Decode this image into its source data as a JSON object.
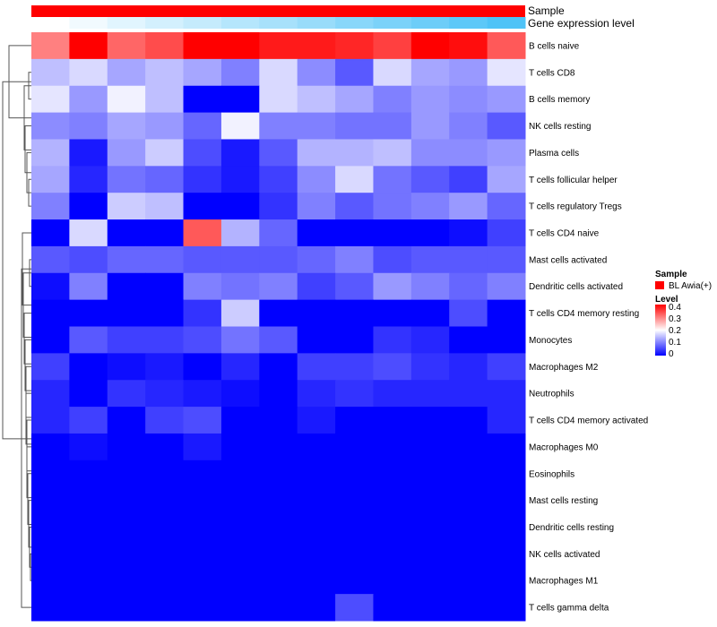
{
  "chart_data": {
    "type": "heatmap",
    "title": "",
    "annotation_rows": [
      {
        "name": "Sample",
        "label": "Sample",
        "color": "#FF0000"
      },
      {
        "name": "Gene expression level",
        "label": "Gene expression level",
        "color_low": "#FFFFFF",
        "color_high": "#4FC3F7",
        "values": [
          0.0,
          0.08,
          0.17,
          0.25,
          0.33,
          0.42,
          0.5,
          0.58,
          0.67,
          0.75,
          0.83,
          0.92,
          1.0
        ]
      }
    ],
    "rows": [
      "B cells naive",
      "T cells CD8",
      "B cells memory",
      "NK cells resting",
      "Plasma cells",
      "T cells follicular helper",
      "T cells regulatory  Tregs",
      "T cells CD4 naive",
      "Mast cells activated",
      "Dendritic cells activated",
      "T cells CD4 memory resting",
      "Monocytes",
      "Macrophages M2",
      "Neutrophils",
      "T cells CD4 memory activated",
      "Macrophages M0",
      "Eosinophils",
      "Mast cells resting",
      "Dendritic cells resting",
      "NK cells activated",
      "Macrophages M1",
      "T cells gamma delta"
    ],
    "n_columns": 13,
    "values": [
      [
        0.3,
        0.4,
        0.32,
        0.34,
        0.4,
        0.4,
        0.38,
        0.38,
        0.37,
        0.35,
        0.4,
        0.39,
        0.33
      ],
      [
        0.15,
        0.17,
        0.13,
        0.15,
        0.13,
        0.1,
        0.17,
        0.11,
        0.07,
        0.17,
        0.13,
        0.12,
        0.18
      ],
      [
        0.18,
        0.12,
        0.19,
        0.15,
        0.0,
        0.0,
        0.17,
        0.15,
        0.13,
        0.1,
        0.12,
        0.11,
        0.12
      ],
      [
        0.11,
        0.1,
        0.13,
        0.12,
        0.08,
        0.19,
        0.1,
        0.1,
        0.09,
        0.09,
        0.12,
        0.1,
        0.07
      ],
      [
        0.14,
        0.02,
        0.12,
        0.16,
        0.06,
        0.02,
        0.07,
        0.14,
        0.14,
        0.15,
        0.11,
        0.11,
        0.12
      ],
      [
        0.13,
        0.03,
        0.09,
        0.08,
        0.04,
        0.02,
        0.05,
        0.11,
        0.17,
        0.09,
        0.07,
        0.05,
        0.13
      ],
      [
        0.1,
        0.0,
        0.16,
        0.15,
        0.0,
        0.0,
        0.04,
        0.1,
        0.07,
        0.09,
        0.1,
        0.12,
        0.08
      ],
      [
        0.0,
        0.17,
        0.0,
        0.0,
        0.33,
        0.14,
        0.08,
        0.0,
        0.0,
        0.0,
        0.0,
        0.01,
        0.05
      ],
      [
        0.07,
        0.06,
        0.08,
        0.08,
        0.07,
        0.07,
        0.07,
        0.08,
        0.1,
        0.06,
        0.07,
        0.07,
        0.07
      ],
      [
        0.01,
        0.1,
        0.0,
        0.0,
        0.1,
        0.09,
        0.1,
        0.05,
        0.07,
        0.12,
        0.1,
        0.08,
        0.1
      ],
      [
        0.0,
        0.0,
        0.0,
        0.0,
        0.04,
        0.16,
        0.0,
        0.0,
        0.0,
        0.0,
        0.0,
        0.06,
        0.0
      ],
      [
        0.0,
        0.07,
        0.05,
        0.05,
        0.06,
        0.09,
        0.07,
        0.0,
        0.0,
        0.04,
        0.03,
        0.0,
        0.0
      ],
      [
        0.05,
        0.0,
        0.01,
        0.02,
        0.0,
        0.03,
        0.0,
        0.05,
        0.05,
        0.06,
        0.04,
        0.03,
        0.05
      ],
      [
        0.03,
        0.0,
        0.04,
        0.03,
        0.02,
        0.01,
        0.0,
        0.03,
        0.04,
        0.03,
        0.03,
        0.03,
        0.03
      ],
      [
        0.03,
        0.05,
        0.0,
        0.05,
        0.06,
        0.0,
        0.0,
        0.02,
        0.0,
        0.0,
        0.0,
        0.0,
        0.03
      ],
      [
        0.0,
        0.01,
        0.0,
        0.0,
        0.02,
        0.0,
        0.0,
        0.0,
        0.0,
        0.0,
        0.0,
        0.0,
        0.0
      ],
      [
        0.0,
        0.0,
        0.0,
        0.0,
        0.0,
        0.0,
        0.0,
        0.0,
        0.0,
        0.0,
        0.0,
        0.0,
        0.0
      ],
      [
        0.0,
        0.0,
        0.0,
        0.0,
        0.0,
        0.0,
        0.0,
        0.0,
        0.0,
        0.0,
        0.0,
        0.0,
        0.0
      ],
      [
        0.0,
        0.0,
        0.0,
        0.0,
        0.0,
        0.0,
        0.0,
        0.0,
        0.0,
        0.0,
        0.0,
        0.0,
        0.0
      ],
      [
        0.0,
        0.0,
        0.0,
        0.0,
        0.0,
        0.0,
        0.0,
        0.0,
        0.0,
        0.0,
        0.0,
        0.0,
        0.0
      ],
      [
        0.0,
        0.0,
        0.0,
        0.0,
        0.0,
        0.0,
        0.0,
        0.0,
        0.0,
        0.0,
        0.0,
        0.0,
        0.0
      ],
      [
        0.0,
        0.0,
        0.0,
        0.0,
        0.0,
        0.0,
        0.0,
        0.0,
        0.06,
        0.0,
        0.0,
        0.0,
        0.0
      ]
    ],
    "color_scale": {
      "low": "#0000FF",
      "mid": "#FFFFFF",
      "high": "#FF0000",
      "min": 0,
      "mid_value": 0.2,
      "max": 0.4
    },
    "dendrogram": "rows clustered (left)",
    "legend": {
      "sample_title": "Sample",
      "sample_entry": "BL Awia(+)",
      "sample_color": "#FF0000",
      "level_title": "Level",
      "level_ticks": [
        "0.4",
        "0.3",
        "0.2",
        "0.1",
        "0"
      ],
      "level_tick_values": [
        0.4,
        0.3,
        0.2,
        0.1,
        0.0
      ],
      "position": "right"
    }
  }
}
